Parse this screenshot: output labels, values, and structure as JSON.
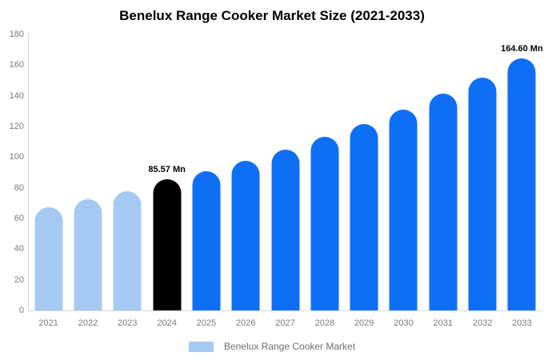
{
  "title": "Benelux Range Cooker Market Size (2021-2033)",
  "legend": {
    "label": "Benelux Range Cooker Market",
    "swatch_color": "#a5c9f3"
  },
  "colors": {
    "light_blue": "#a5c9f3",
    "bright_blue": "#0e6ff5",
    "black": "#000000",
    "axis_line": "#d6d6d6",
    "tick_text": "#7a7a7a",
    "legend_text": "#6e6e6e"
  },
  "chart_data": {
    "type": "bar",
    "title": "Benelux Range Cooker Market Size (2021-2033)",
    "xlabel": "",
    "ylabel": "",
    "unit": "Mn",
    "categories": [
      "2021",
      "2022",
      "2023",
      "2024",
      "2025",
      "2026",
      "2027",
      "2028",
      "2029",
      "2030",
      "2031",
      "2032",
      "2033"
    ],
    "values": [
      67.5,
      72.5,
      78,
      85.57,
      90.8,
      97.7,
      105,
      113,
      121.7,
      131,
      141.5,
      151.7,
      164.6
    ],
    "bar_colors": [
      "#a5c9f3",
      "#a5c9f3",
      "#a5c9f3",
      "#000000",
      "#0e6ff5",
      "#0e6ff5",
      "#0e6ff5",
      "#0e6ff5",
      "#0e6ff5",
      "#0e6ff5",
      "#0e6ff5",
      "#0e6ff5",
      "#0e6ff5"
    ],
    "annotations": [
      {
        "category": "2024",
        "text": "85.57 Mn"
      },
      {
        "category": "2033",
        "text": "164.60 Mn"
      }
    ],
    "ylim": [
      0,
      180
    ],
    "yticks": [
      0,
      20,
      40,
      60,
      80,
      100,
      120,
      140,
      160,
      180
    ],
    "grid": false,
    "legend_position": "bottom",
    "legend_entries": [
      "Benelux Range Cooker Market"
    ]
  }
}
